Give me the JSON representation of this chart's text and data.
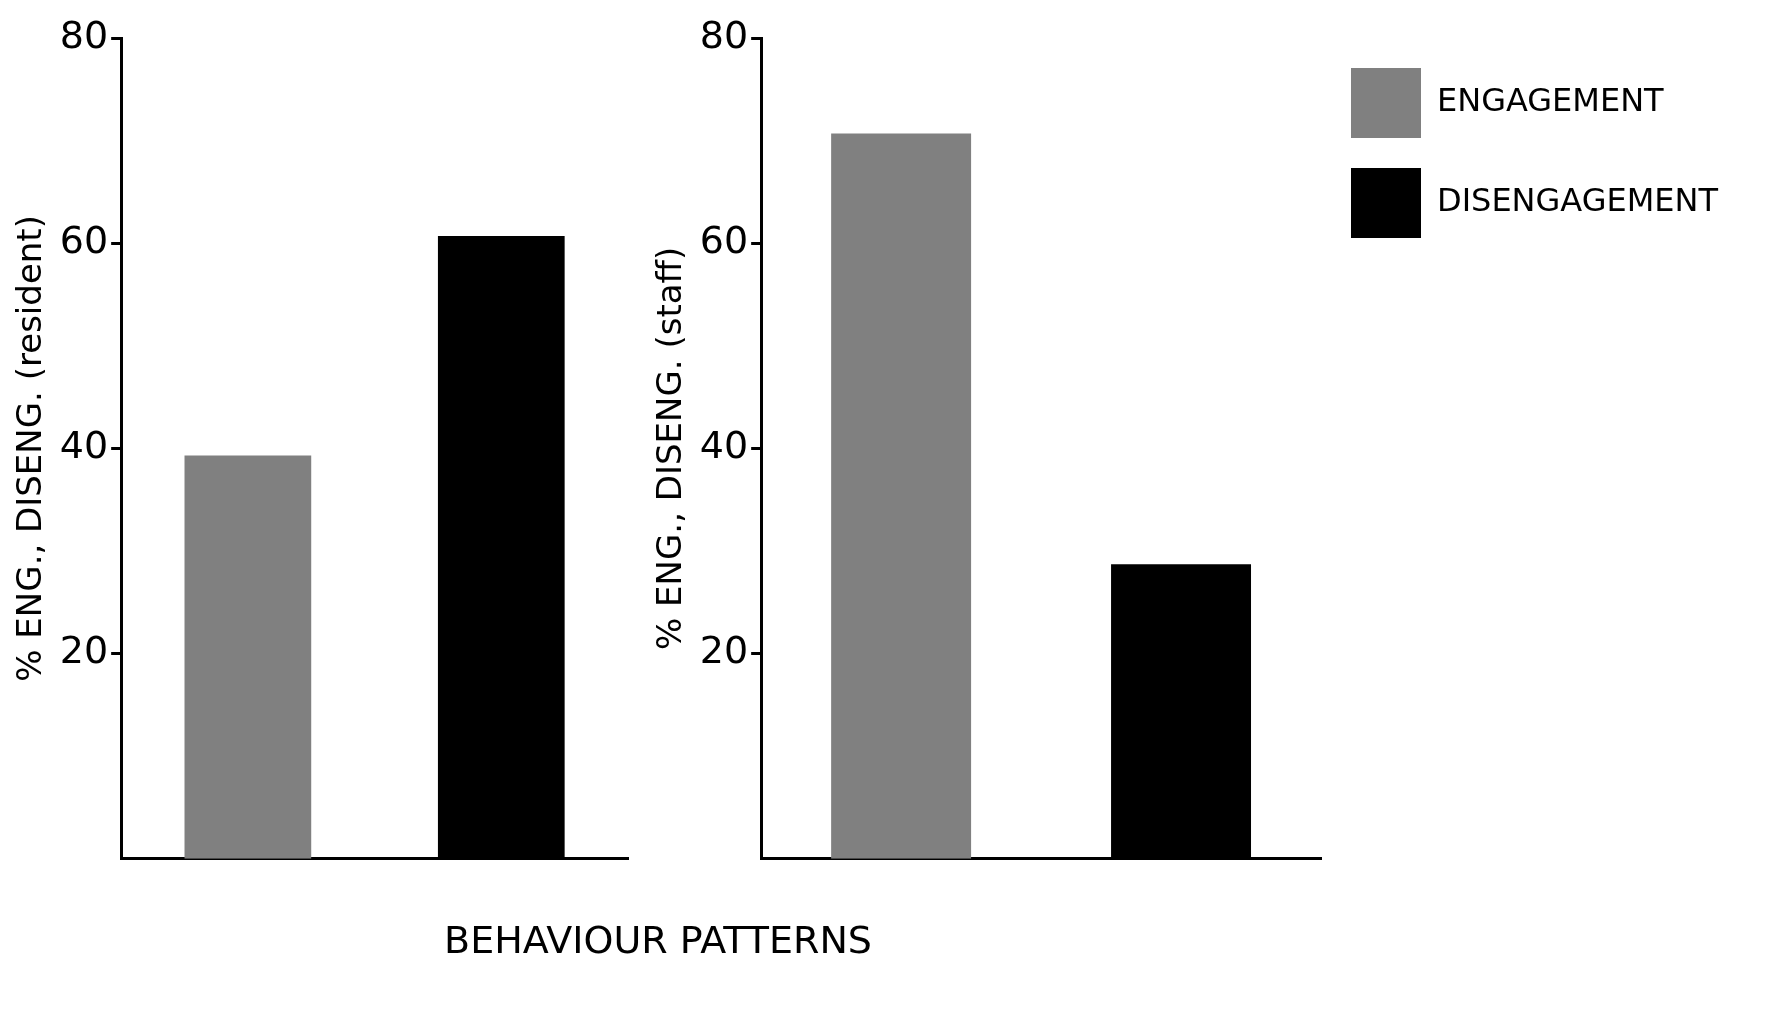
{
  "chart_data": [
    {
      "type": "bar",
      "ylabel": "% ENG., DISENG. (resident)",
      "xlabel": "BEHAVIOUR PATTERNS",
      "categories": [
        null,
        null
      ],
      "ylim": [
        0,
        80
      ],
      "yticks": [
        20,
        40,
        60,
        80
      ],
      "grid": false,
      "legend": false,
      "series": [
        {
          "color": "#808080",
          "values": [
            39.3,
            null
          ]
        },
        {
          "color": "#000000",
          "values": [
            null,
            60.7
          ]
        }
      ]
    },
    {
      "type": "bar",
      "ylabel": "% ENG., DISENG. (staff)",
      "categories": [
        null,
        null
      ],
      "ylim": [
        0,
        80
      ],
      "yticks": [
        20,
        40,
        60,
        80
      ],
      "grid": false,
      "legend": "top right",
      "series": [
        {
          "name": "ENGAGEMENT",
          "color": "#808080",
          "values": [
            70.7,
            null
          ]
        },
        {
          "name": "DISENGAGEMENT",
          "color": "#000000",
          "values": [
            null,
            28.7
          ]
        }
      ]
    }
  ]
}
